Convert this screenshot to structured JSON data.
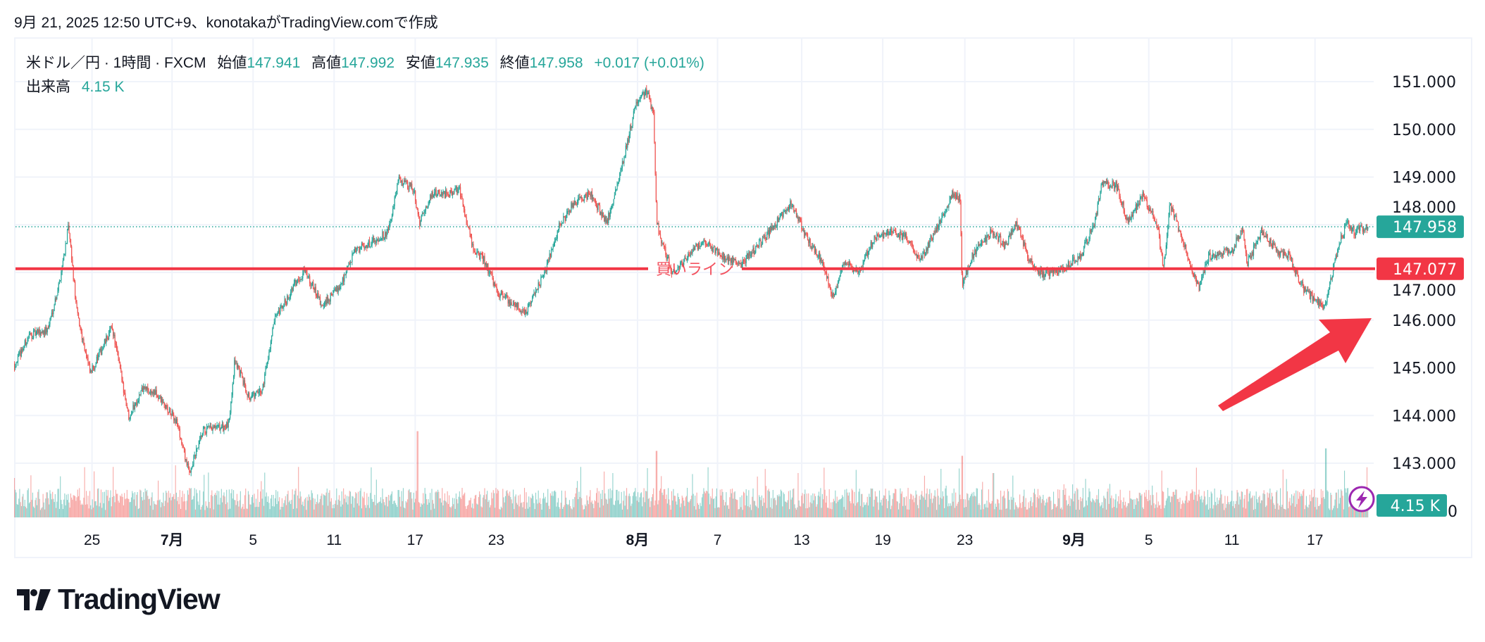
{
  "header": {
    "title": "9月 21, 2025 12:50 UTC+9、konotakaがTradingView.comで作成"
  },
  "legend": {
    "symbol": "米ドル／円 · 1時間 · FXCM",
    "open_label": "始値",
    "open": "147.941",
    "high_label": "高値",
    "high": "147.992",
    "low_label": "安値",
    "low": "147.935",
    "close_label": "終値",
    "close": "147.958",
    "change": "+0.017 (+0.01%)",
    "volume_label": "出来高",
    "volume": "4.15 K"
  },
  "colors": {
    "up": "#26a69a",
    "down": "#ef5350",
    "line": "#f23645",
    "alert": "#9c27b0"
  },
  "chart_data": {
    "type": "candlestick",
    "symbol": "USDJPY",
    "interval": "1h",
    "price_ticks": [
      "151.000",
      "150.000",
      "149.000",
      "148.000",
      "147.000",
      "146.000",
      "145.000",
      "144.000",
      "143.000"
    ],
    "price_tick_values": [
      151,
      150,
      149,
      148,
      147,
      146,
      145,
      144,
      143
    ],
    "ylim": [
      142.6,
      151.4
    ],
    "last_price": {
      "value": 147.958,
      "label": "147.958"
    },
    "buy_line": {
      "value": 147.077,
      "label": "147.077",
      "text": "買いライン"
    },
    "volume_axis": {
      "zero_label": "0",
      "last_label": "4.15 K",
      "last_value_k": 4.15
    },
    "x_unit": "trading days from chart start",
    "x_range": [
      0,
      65.2
    ],
    "date_ticks": [
      {
        "t": 3.75,
        "label": "25",
        "bold": false
      },
      {
        "t": 7.6,
        "label": "7月",
        "bold": true
      },
      {
        "t": 11.5,
        "label": "5",
        "bold": false
      },
      {
        "t": 15.4,
        "label": "11",
        "bold": false
      },
      {
        "t": 19.3,
        "label": "17",
        "bold": false
      },
      {
        "t": 23.2,
        "label": "23",
        "bold": false
      },
      {
        "t": 30.0,
        "label": "8月",
        "bold": true
      },
      {
        "t": 33.85,
        "label": "7",
        "bold": false
      },
      {
        "t": 37.9,
        "label": "13",
        "bold": false
      },
      {
        "t": 41.8,
        "label": "19",
        "bold": false
      },
      {
        "t": 45.75,
        "label": "23",
        "bold": false
      },
      {
        "t": 51.0,
        "label": "9月",
        "bold": true
      },
      {
        "t": 54.6,
        "label": "5",
        "bold": false
      },
      {
        "t": 58.6,
        "label": "11",
        "bold": false
      },
      {
        "t": 62.6,
        "label": "17",
        "bold": false
      }
    ],
    "price_path": [
      [
        0.0,
        145.07
      ],
      [
        0.7,
        145.67
      ],
      [
        1.6,
        145.8
      ],
      [
        2.15,
        146.76
      ],
      [
        2.6,
        147.95
      ],
      [
        3.0,
        146.17
      ],
      [
        3.65,
        144.87
      ],
      [
        4.7,
        145.86
      ],
      [
        5.5,
        143.98
      ],
      [
        6.2,
        144.58
      ],
      [
        6.8,
        144.45
      ],
      [
        7.8,
        143.88
      ],
      [
        8.4,
        142.79
      ],
      [
        9.1,
        143.68
      ],
      [
        10.3,
        143.78
      ],
      [
        10.6,
        145.17
      ],
      [
        11.3,
        144.38
      ],
      [
        11.9,
        144.5
      ],
      [
        12.5,
        145.96
      ],
      [
        13.5,
        146.76
      ],
      [
        14.0,
        147.06
      ],
      [
        14.8,
        146.27
      ],
      [
        15.7,
        146.76
      ],
      [
        16.4,
        147.46
      ],
      [
        17.3,
        147.66
      ],
      [
        18.0,
        147.86
      ],
      [
        18.5,
        148.95
      ],
      [
        19.2,
        148.75
      ],
      [
        19.5,
        148.05
      ],
      [
        20.1,
        148.65
      ],
      [
        20.8,
        148.65
      ],
      [
        21.4,
        148.75
      ],
      [
        22.1,
        147.46
      ],
      [
        22.6,
        147.26
      ],
      [
        23.3,
        146.56
      ],
      [
        23.9,
        146.37
      ],
      [
        24.6,
        146.17
      ],
      [
        25.5,
        146.96
      ],
      [
        26.2,
        147.95
      ],
      [
        26.9,
        148.45
      ],
      [
        27.7,
        148.65
      ],
      [
        28.5,
        148.05
      ],
      [
        29.0,
        148.84
      ],
      [
        29.4,
        149.54
      ],
      [
        29.9,
        150.53
      ],
      [
        30.4,
        150.83
      ],
      [
        30.75,
        150.33
      ],
      [
        30.9,
        148.05
      ],
      [
        31.2,
        147.56
      ],
      [
        31.7,
        146.96
      ],
      [
        32.2,
        147.26
      ],
      [
        33.1,
        147.66
      ],
      [
        34.0,
        147.36
      ],
      [
        34.9,
        147.16
      ],
      [
        35.8,
        147.56
      ],
      [
        36.5,
        147.95
      ],
      [
        37.4,
        148.45
      ],
      [
        38.1,
        147.75
      ],
      [
        38.8,
        147.26
      ],
      [
        39.4,
        146.47
      ],
      [
        39.9,
        147.26
      ],
      [
        40.6,
        146.96
      ],
      [
        41.3,
        147.66
      ],
      [
        42.0,
        147.86
      ],
      [
        42.9,
        147.75
      ],
      [
        43.6,
        147.26
      ],
      [
        44.5,
        148.05
      ],
      [
        45.15,
        148.65
      ],
      [
        45.5,
        148.55
      ],
      [
        45.6,
        146.76
      ],
      [
        46.1,
        147.36
      ],
      [
        47.0,
        147.86
      ],
      [
        47.7,
        147.56
      ],
      [
        48.2,
        148.05
      ],
      [
        48.8,
        147.26
      ],
      [
        49.5,
        146.96
      ],
      [
        50.4,
        147.06
      ],
      [
        51.3,
        147.36
      ],
      [
        52.0,
        148.05
      ],
      [
        52.3,
        148.84
      ],
      [
        53.0,
        148.84
      ],
      [
        53.6,
        148.05
      ],
      [
        54.3,
        148.65
      ],
      [
        55.0,
        147.95
      ],
      [
        55.3,
        147.06
      ],
      [
        55.6,
        148.45
      ],
      [
        56.3,
        147.56
      ],
      [
        57.0,
        146.67
      ],
      [
        57.5,
        147.36
      ],
      [
        58.6,
        147.46
      ],
      [
        59.1,
        147.95
      ],
      [
        59.3,
        147.16
      ],
      [
        60.0,
        147.86
      ],
      [
        60.7,
        147.46
      ],
      [
        61.3,
        147.36
      ],
      [
        62.0,
        146.67
      ],
      [
        62.7,
        146.37
      ],
      [
        63.1,
        146.27
      ],
      [
        63.4,
        146.96
      ],
      [
        63.8,
        147.66
      ],
      [
        64.1,
        148.05
      ],
      [
        64.5,
        147.86
      ],
      [
        65.0,
        147.958
      ]
    ],
    "volume_spikes_k": [
      [
        0.0,
        16
      ],
      [
        19.4,
        35
      ],
      [
        28.8,
        18
      ],
      [
        30.9,
        27
      ],
      [
        37.7,
        18
      ],
      [
        45.6,
        25
      ],
      [
        47.1,
        18
      ],
      [
        55.2,
        19
      ],
      [
        63.1,
        28
      ]
    ],
    "volume_typical_k": [
      3,
      12
    ]
  },
  "branding": {
    "logo_text": "TradingView"
  }
}
